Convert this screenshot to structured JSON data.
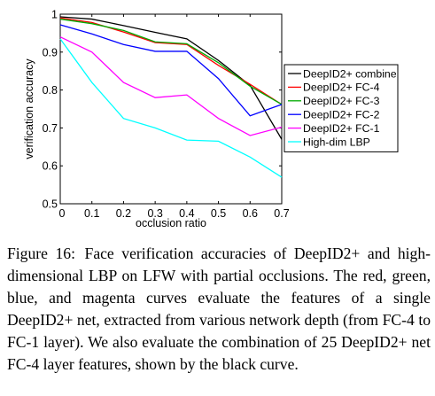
{
  "chart_data": {
    "type": "line",
    "xlabel": "occlusion ratio",
    "ylabel": "verification accuracy",
    "x": [
      0,
      0.1,
      0.2,
      0.3,
      0.4,
      0.5,
      0.6,
      0.7
    ],
    "xlim": [
      0,
      0.7
    ],
    "ylim": [
      0.5,
      1
    ],
    "xticks": [
      "0",
      "0.1",
      "0.2",
      "0.3",
      "0.4",
      "0.5",
      "0.6",
      "0.7"
    ],
    "yticks": [
      "0.5",
      "0.6",
      "0.7",
      "0.8",
      "0.9",
      "1"
    ],
    "grid": false,
    "legend_position": "right",
    "series": [
      {
        "name": "DeepID2+ combine",
        "color": "#000000",
        "values": [
          0.993,
          0.987,
          0.97,
          0.952,
          0.935,
          0.878,
          0.812,
          0.67
        ]
      },
      {
        "name": "DeepID2+ FC-4",
        "color": "#ff0000",
        "values": [
          0.99,
          0.978,
          0.953,
          0.925,
          0.92,
          0.865,
          0.815,
          0.762
        ]
      },
      {
        "name": "DeepID2+ FC-3",
        "color": "#00aa00",
        "values": [
          0.987,
          0.975,
          0.957,
          0.927,
          0.922,
          0.872,
          0.81,
          0.762
        ]
      },
      {
        "name": "DeepID2+ FC-2",
        "color": "#0000ff",
        "values": [
          0.972,
          0.948,
          0.92,
          0.902,
          0.902,
          0.83,
          0.732,
          0.762
        ]
      },
      {
        "name": "DeepID2+ FC-1",
        "color": "#ff00ff",
        "values": [
          0.94,
          0.9,
          0.82,
          0.78,
          0.787,
          0.725,
          0.68,
          0.702
        ]
      },
      {
        "name": "High-dim LBP",
        "color": "#00ffff",
        "values": [
          0.935,
          0.82,
          0.725,
          0.7,
          0.668,
          0.665,
          0.623,
          0.57
        ]
      }
    ]
  },
  "caption": {
    "label": "Figure 16:",
    "text": "Face verification accuracies of DeepID2+ and high-dimensional LBP on LFW with partial occlusions. The red, green, blue, and magenta curves evaluate the features of a single DeepID2+ net, extracted from various network depth (from FC-4 to FC-1 layer). We also evaluate the combination of 25 DeepID2+ net FC-4 layer features, shown by the black curve."
  }
}
